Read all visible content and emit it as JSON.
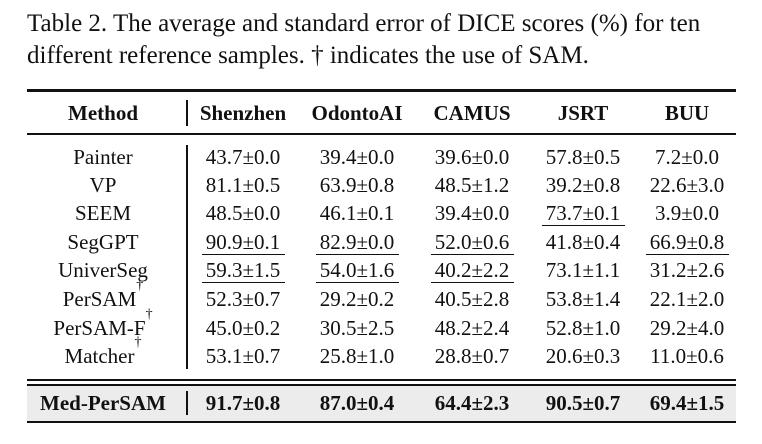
{
  "caption": "Table 2. The average and standard error of DICE scores (%) for ten different reference samples. † indicates the use of SAM.",
  "table": {
    "headers": [
      "Method",
      "Shenzhen",
      "OdontoAI",
      "CAMUS",
      "JSRT",
      "BUU"
    ],
    "rows": [
      {
        "method": "Painter",
        "sup": "",
        "values": [
          "43.7±0.0",
          "39.4±0.0",
          "39.6±0.0",
          "57.8±0.5",
          "7.2±0.0"
        ]
      },
      {
        "method": "VP",
        "sup": "",
        "values": [
          "81.1±0.5",
          "63.9±0.8",
          "48.5±1.2",
          "39.2±0.8",
          "22.6±3.0"
        ]
      },
      {
        "method": "SEEM",
        "sup": "",
        "values": [
          "48.5±0.0",
          "46.1±0.1",
          "39.4±0.0",
          "73.7±0.1",
          "3.9±0.0"
        ]
      },
      {
        "method": "SegGPT",
        "sup": "",
        "values": [
          "90.9±0.1",
          "82.9±0.0",
          "52.0±0.6",
          "41.8±0.4",
          "66.9±0.8"
        ]
      },
      {
        "method": "UniverSeg",
        "sup": "",
        "values": [
          "59.3±1.5",
          "54.0±1.6",
          "40.2±2.2",
          "73.1±1.1",
          "31.2±2.6"
        ]
      },
      {
        "method": "PerSAM",
        "sup": "†",
        "values": [
          "52.3±0.7",
          "29.2±0.2",
          "40.5±2.8",
          "53.8±1.4",
          "22.1±2.0"
        ]
      },
      {
        "method": "PerSAM-F",
        "sup": "†",
        "values": [
          "45.0±0.2",
          "30.5±2.5",
          "48.2±2.4",
          "52.8±1.0",
          "29.2±4.0"
        ]
      },
      {
        "method": "Matcher",
        "sup": "†",
        "values": [
          "53.1±0.7",
          "25.8±1.0",
          "28.8±0.7",
          "20.6±0.3",
          "11.0±0.6"
        ]
      }
    ],
    "final_row": {
      "method": "Med-PerSAM",
      "values": [
        "91.7±0.8",
        "87.0±0.4",
        "64.4±2.3",
        "90.5±0.7",
        "69.4±1.5"
      ]
    },
    "underlined": [
      {
        "row": 3,
        "col": 0
      },
      {
        "row": 3,
        "col": 1
      },
      {
        "row": 3,
        "col": 2
      },
      {
        "row": 3,
        "col": 4
      },
      {
        "row": 4,
        "col": 0
      },
      {
        "row": 4,
        "col": 1
      },
      {
        "row": 4,
        "col": 2
      },
      {
        "row": 2,
        "col": 3
      }
    ]
  }
}
